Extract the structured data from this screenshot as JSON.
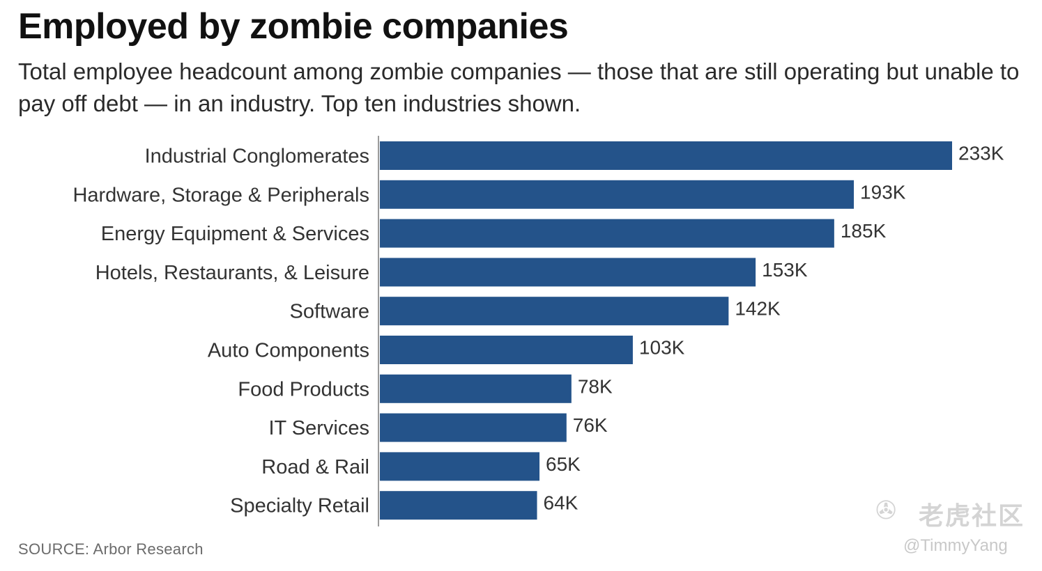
{
  "title": "Employed by zombie companies",
  "subtitle": "Total employee headcount among zombie companies — those that are still operating but unable to pay off debt — in an industry. Top ten industries shown.",
  "source": "SOURCE: Arbor Research",
  "watermark": {
    "logo_icon": "tiger-community-logo-icon",
    "brand": "老虎社区",
    "handle": "@TimmyYang"
  },
  "colors": {
    "bar": "#24538a",
    "axis": "#9a9a9a"
  },
  "chart_data": {
    "type": "bar",
    "orientation": "horizontal",
    "categories": [
      "Industrial Conglomerates",
      "Hardware, Storage & Peripherals",
      "Energy Equipment & Services",
      "Hotels, Restaurants, & Leisure",
      "Software",
      "Auto Components",
      "Food Products",
      "IT Services",
      "Road & Rail",
      "Specialty Retail"
    ],
    "values": [
      233,
      193,
      185,
      153,
      142,
      103,
      78,
      76,
      65,
      64
    ],
    "value_labels": [
      "233K",
      "193K",
      "185K",
      "153K",
      "142K",
      "103K",
      "78K",
      "76K",
      "65K",
      "64K"
    ],
    "value_unit": "thousand employees",
    "xlim": [
      0,
      233
    ],
    "grid": false,
    "legend": "none"
  }
}
